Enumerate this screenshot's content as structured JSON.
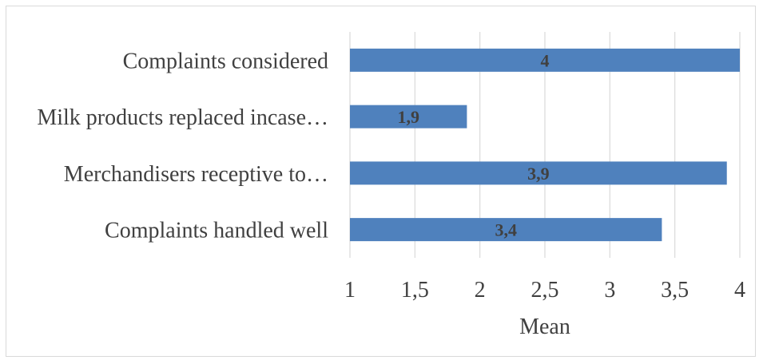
{
  "chart_data": {
    "type": "bar",
    "orientation": "horizontal",
    "categories": [
      "Complaints considered",
      "Milk products replaced incase…",
      "Merchandisers receptive to…",
      "Complaints handled well"
    ],
    "values": [
      4,
      1.9,
      3.9,
      3.4
    ],
    "data_labels": [
      "4",
      "1,9",
      "3,9",
      "3,4"
    ],
    "xlabel": "Mean",
    "xlim": [
      1,
      4
    ],
    "x_ticks": [
      1,
      1.5,
      2,
      2.5,
      3,
      3.5,
      4
    ],
    "x_tick_labels": [
      "1",
      "1,5",
      "2",
      "2,5",
      "3",
      "3,5",
      "4"
    ],
    "grid": true,
    "legend": "none",
    "bar_color": "#4f81bd",
    "grid_color": "#d9d9d9"
  }
}
